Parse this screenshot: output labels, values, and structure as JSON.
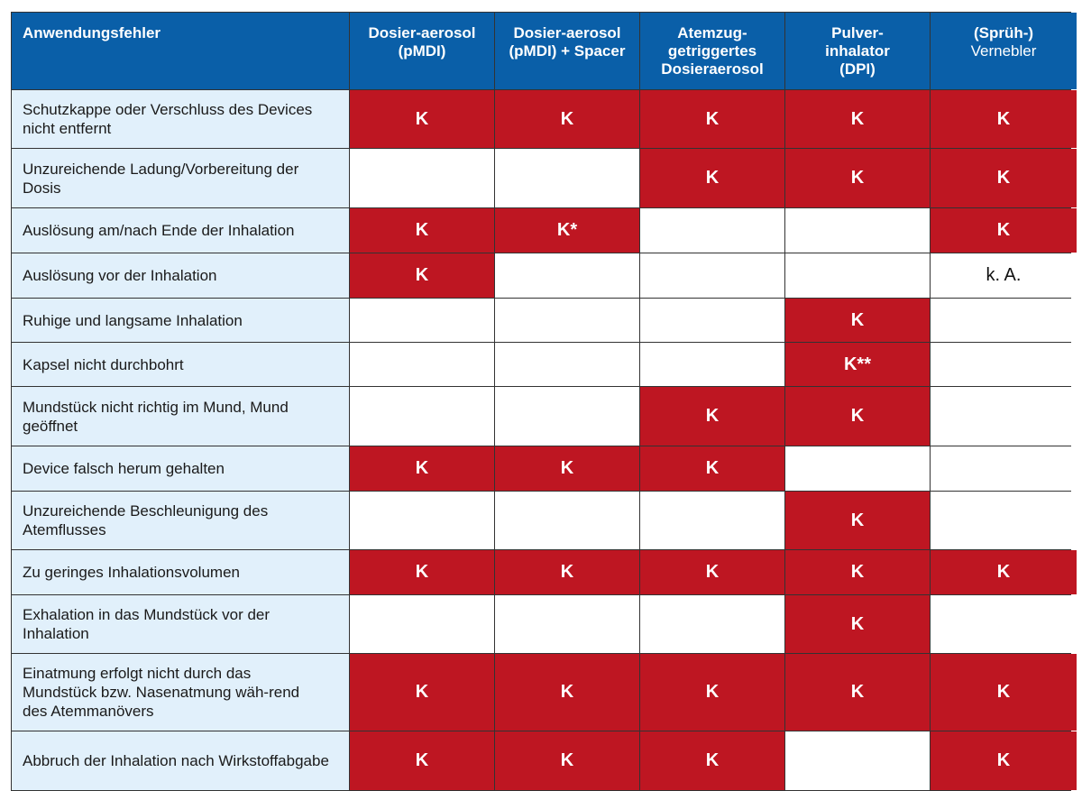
{
  "colors": {
    "header": "#0a5fa8",
    "mark": "#be1622",
    "label_bg": "#e1f0fb"
  },
  "header": {
    "first": "Anwendungsfehler",
    "columns": [
      {
        "bold": "Dosier-aerosol (pMDI)",
        "thin": ""
      },
      {
        "bold": "Dosier-aerosol (pMDI) + Spacer",
        "thin": ""
      },
      {
        "bold": "Atemzug-getriggertes Dosieraerosol",
        "thin": ""
      },
      {
        "bold": "Pulver-inhalator (DPI)",
        "thin": ""
      },
      {
        "bold": "(Sprüh-)",
        "thin": "Vernebler"
      }
    ]
  },
  "rows": [
    {
      "label": "Schutzkappe oder Verschluss des Devices nicht entfernt",
      "cells": [
        "K",
        "K",
        "K",
        "K",
        "K"
      ]
    },
    {
      "label": "Unzureichende Ladung/Vorbereitung der Dosis",
      "cells": [
        "",
        "",
        "K",
        "K",
        "K"
      ]
    },
    {
      "label": "Auslösung am/nach Ende der Inhalation",
      "cells": [
        "K",
        "K*",
        "",
        "",
        "K"
      ]
    },
    {
      "label": "Auslösung vor der Inhalation",
      "cells": [
        "K",
        "",
        "",
        "",
        "k. A."
      ]
    },
    {
      "label": "Ruhige und langsame Inhalation",
      "cells": [
        "",
        "",
        "",
        "K",
        ""
      ]
    },
    {
      "label": "Kapsel nicht durchbohrt",
      "cells": [
        "",
        "",
        "",
        "K**",
        ""
      ]
    },
    {
      "label": "Mundstück nicht richtig im Mund, Mund geöffnet",
      "cells": [
        "",
        "",
        "K",
        "K",
        ""
      ]
    },
    {
      "label": "Device falsch herum gehalten",
      "cells": [
        "K",
        "K",
        "K",
        "",
        ""
      ]
    },
    {
      "label": "Unzureichende Beschleunigung des Atemflusses",
      "cells": [
        "",
        "",
        "",
        "K",
        ""
      ]
    },
    {
      "label": "Zu geringes Inhalationsvolumen",
      "cells": [
        "K",
        "K",
        "K",
        "K",
        "K"
      ]
    },
    {
      "label": "Exhalation in das Mundstück vor der Inhalation",
      "cells": [
        "",
        "",
        "",
        "K",
        ""
      ]
    },
    {
      "label": "Einatmung erfolgt nicht durch das Mundstück bzw. Nasenatmung wäh-rend des Atemmanövers",
      "cells": [
        "K",
        "K",
        "K",
        "K",
        "K"
      ]
    },
    {
      "label": "Abbruch der Inhalation nach Wirkstoffabgabe",
      "cells": [
        "K",
        "K",
        "K",
        "",
        "K"
      ]
    }
  ]
}
